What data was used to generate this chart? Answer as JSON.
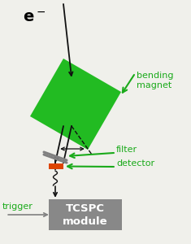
{
  "bg_color": "#f0f0eb",
  "green_color": "#1aaa1a",
  "magnet_color": "#22bb22",
  "tcspc_color": "#888888",
  "orange_color": "#dd4400",
  "line_color": "#111111",
  "label_bending": "bending\nmagnet",
  "label_filter": "filter",
  "label_detector": "detector",
  "label_trigger": "trigger",
  "label_tcspc": "TCSPC\nmodule",
  "fig_width": 2.35,
  "fig_height": 3.0,
  "dpi": 100
}
